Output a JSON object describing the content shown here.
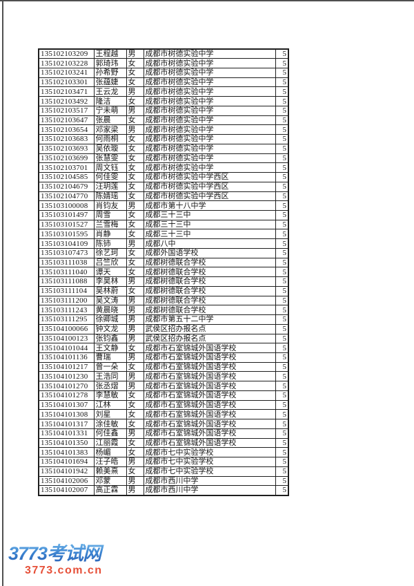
{
  "page": {
    "background": "#ffffff",
    "frame_border_color": "#4f4f4f"
  },
  "roster_table": {
    "column_names": [
      "exam_id",
      "name",
      "gender",
      "school_or_site",
      "group_number"
    ],
    "rows": [
      [
        "135102103209",
        "王程越",
        "男",
        "成都市树德实验中学",
        "5"
      ],
      [
        "135102103228",
        "郭琦玮",
        "女",
        "成都市树德实验中学",
        "5"
      ],
      [
        "135102103241",
        "孙希野",
        "女",
        "成都市树德实验中学",
        "5"
      ],
      [
        "135102103301",
        "张蕴婕",
        "女",
        "成都市树德实验中学",
        "5"
      ],
      [
        "135102103471",
        "王云龙",
        "男",
        "成都市树德实验中学",
        "5"
      ],
      [
        "135102103492",
        "隆洁",
        "女",
        "成都市树德实验中学",
        "5"
      ],
      [
        "135102103517",
        "宁未萌",
        "男",
        "成都市树德实验中学",
        "5"
      ],
      [
        "135102103647",
        "张晨",
        "女",
        "成都市树德实验中学",
        "5"
      ],
      [
        "135102103654",
        "邓家梁",
        "男",
        "成都市树德实验中学",
        "5"
      ],
      [
        "135102103683",
        "何雨桐",
        "女",
        "成都市树德实验中学",
        "5"
      ],
      [
        "135102103693",
        "吴依璇",
        "女",
        "成都市树德实验中学",
        "5"
      ],
      [
        "135102103699",
        "张慧雯",
        "女",
        "成都市树德实验中学",
        "5"
      ],
      [
        "135102103701",
        "周文钰",
        "女",
        "成都市树德实验中学",
        "5"
      ],
      [
        "135102104585",
        "何佳雯",
        "女",
        "成都市树德实验中学西区",
        "5"
      ],
      [
        "135102104679",
        "汪玥莲",
        "女",
        "成都市树德实验中学西区",
        "5"
      ],
      [
        "135102104770",
        "陈婧瑶",
        "女",
        "成都市树德实验中学西区",
        "5"
      ],
      [
        "135103100008",
        "肖钧友",
        "男",
        "成都市第十八中学",
        "5"
      ],
      [
        "135103101497",
        "周雪",
        "女",
        "成都三十三中",
        "5"
      ],
      [
        "135103101527",
        "兰雪梅",
        "女",
        "成都三十三中",
        "5"
      ],
      [
        "135103101595",
        "肖静",
        "女",
        "成都三十三中",
        "5"
      ],
      [
        "135103104109",
        "陈铈",
        "男",
        "成都八中",
        "5"
      ],
      [
        "135103107473",
        "徐艺珂",
        "女",
        "成都外国语学校",
        "5"
      ],
      [
        "135103111038",
        "吕竺欣",
        "女",
        "成都树德联合学校",
        "5"
      ],
      [
        "135103111040",
        "谭天",
        "女",
        "成都树德联合学校",
        "5"
      ],
      [
        "135103111088",
        "李昊林",
        "男",
        "成都树德联合学校",
        "5"
      ],
      [
        "135103111104",
        "吴林蔚",
        "女",
        "成都树德联合学校",
        "5"
      ],
      [
        "135103111200",
        "吴文涛",
        "男",
        "成都树德联合学校",
        "5"
      ],
      [
        "135103111243",
        "黄晨晓",
        "男",
        "成都树德联合学校",
        "5"
      ],
      [
        "135103111295",
        "徐卿城",
        "男",
        "成都市第五十二中学",
        "5"
      ],
      [
        "135104100066",
        "钟文龙",
        "男",
        "武侯区招办报名点",
        "5"
      ],
      [
        "135104100123",
        "张钧鑫",
        "男",
        "武侯区招办报名点",
        "5"
      ],
      [
        "135104101044",
        "王文静",
        "女",
        "成都市石室锦城外国语学校",
        "5"
      ],
      [
        "135104101136",
        "曹瑞",
        "男",
        "成都市石室锦城外国语学校",
        "5"
      ],
      [
        "135104101217",
        "曾一朵",
        "女",
        "成都市石室锦城外国语学校",
        "5"
      ],
      [
        "135104101230",
        "王浩同",
        "男",
        "成都市石室锦城外国语学校",
        "5"
      ],
      [
        "135104101270",
        "张丞熠",
        "男",
        "成都市石室锦城外国语学校",
        "5"
      ],
      [
        "135104101278",
        "李慧敏",
        "女",
        "成都市石室锦城外国语学校",
        "5"
      ],
      [
        "135104101307",
        "江林",
        "女",
        "成都市石室锦城外国语学校",
        "5"
      ],
      [
        "135104101308",
        "刘星",
        "女",
        "成都市石室锦城外国语学校",
        "5"
      ],
      [
        "135104101317",
        "涂佳敏",
        "女",
        "成都市石室锦城外国语学校",
        "5"
      ],
      [
        "135104101331",
        "何佳鑫",
        "男",
        "成都市石室锦城外国语学校",
        "5"
      ],
      [
        "135104101350",
        "江丽霞",
        "女",
        "成都市石室锦城外国语学校",
        "5"
      ],
      [
        "135104101383",
        "杨嵋",
        "女",
        "成都市七中实验学校",
        "5"
      ],
      [
        "135104101694",
        "汪子皓",
        "男",
        "成都市七中实验学校",
        "5"
      ],
      [
        "135104101942",
        "赖美熹",
        "女",
        "成都市七中实验学校",
        "5"
      ],
      [
        "135104102006",
        "邓蒙",
        "男",
        "成都市西川中学",
        "5"
      ],
      [
        "135104102007",
        "高正霖",
        "男",
        "成都市西川中学",
        "5"
      ]
    ]
  },
  "watermark": {
    "site_name": "3773考试网",
    "site_url": "3773.com.cn",
    "name_color_top": "#6db3e8",
    "name_color_bottom": "#2b63b6",
    "url_color": "#e65039"
  }
}
